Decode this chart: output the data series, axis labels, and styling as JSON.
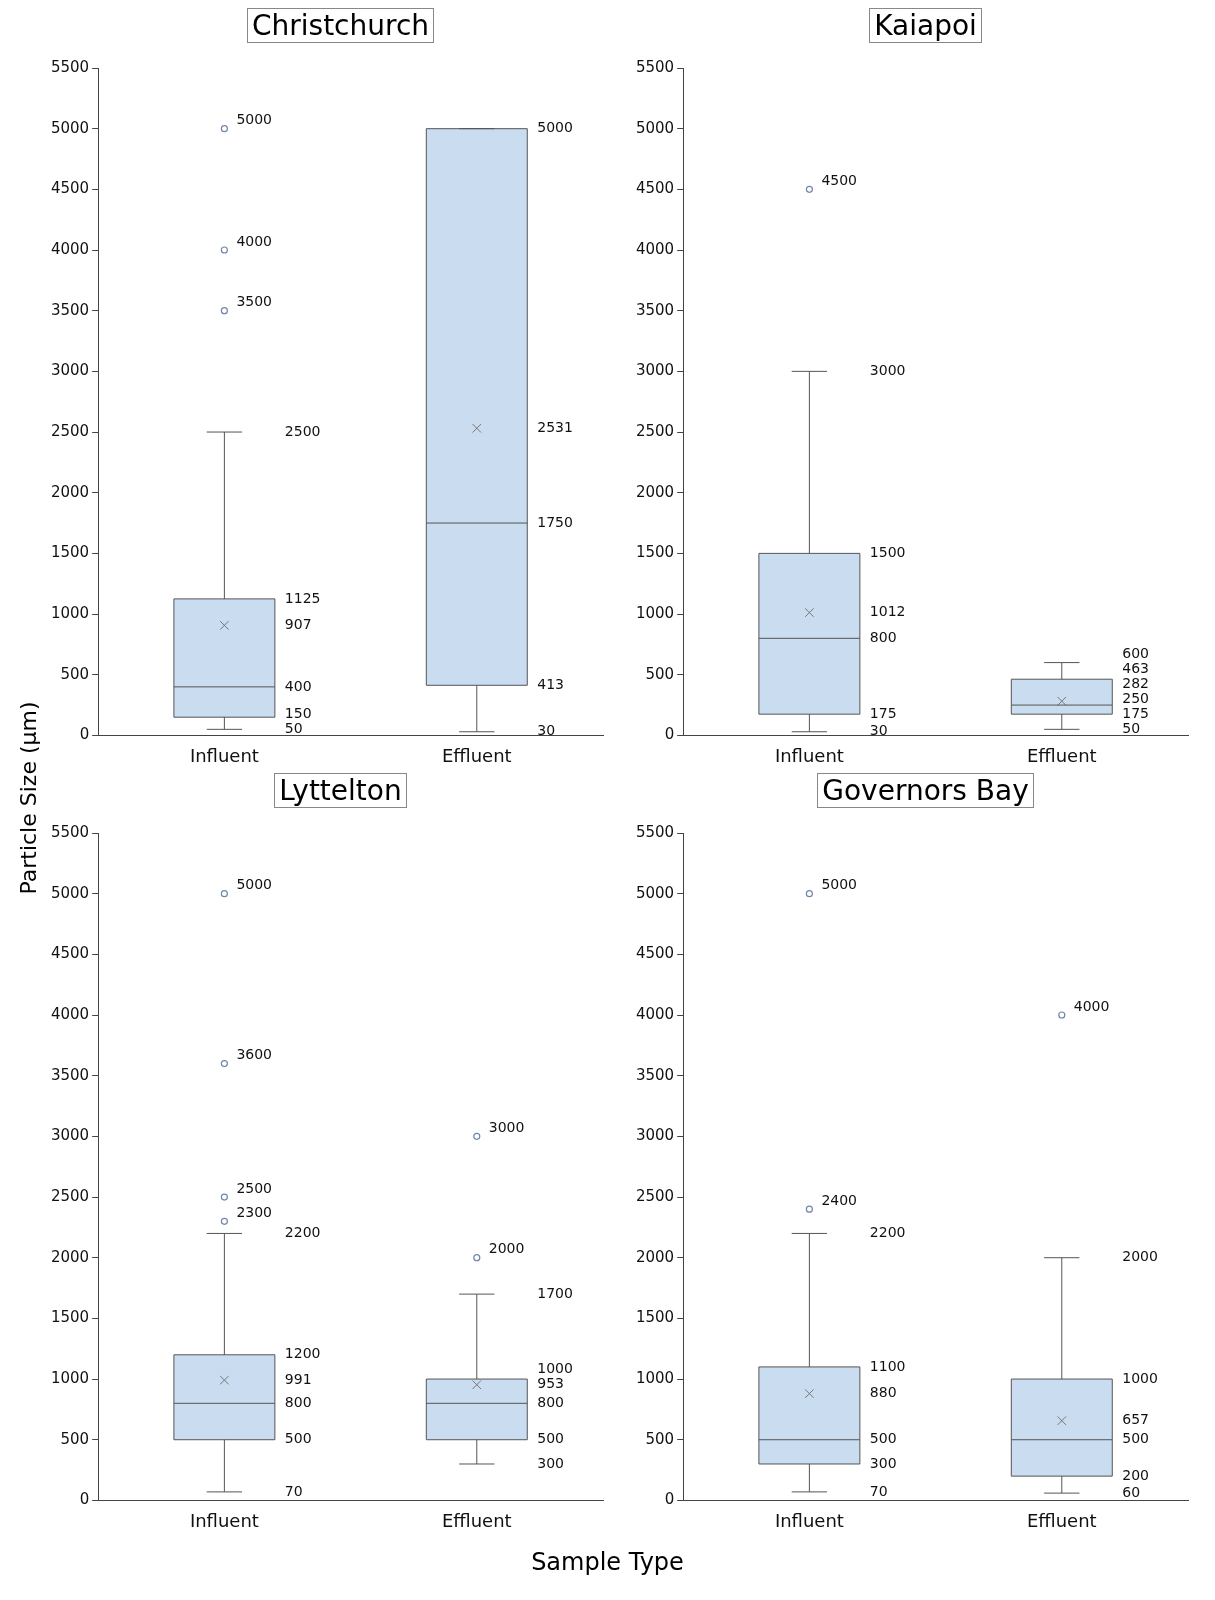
{
  "chart_data": [
    {
      "type": "box",
      "title": "Christchurch",
      "ylabel": "Particle Size (μm)",
      "xlabel": "Sample Type",
      "categories": [
        "Influent",
        "Effluent"
      ],
      "color": "#c9dcf0",
      "marker": "circle",
      "data_labels": true,
      "ylim": [
        0,
        5500
      ],
      "yticks": [
        0,
        500,
        1000,
        1500,
        2000,
        2500,
        3000,
        3500,
        4000,
        4500,
        5000,
        5500
      ],
      "boxes": [
        {
          "low": 50,
          "q1": 150,
          "median": 400,
          "q3": 1125,
          "high": 2500,
          "mean": 907,
          "outliers": [
            3500,
            4000,
            5000
          ]
        },
        {
          "low": 30,
          "q1": 413,
          "median": 1750,
          "q3": 5000,
          "high": 5000,
          "mean": 2531
        }
      ],
      "annotations": [
        "50",
        "150",
        "400",
        "1125",
        "2500",
        "907",
        "3500",
        "4000",
        "5000",
        "30",
        "413",
        "1750",
        "5000",
        "2531"
      ]
    },
    {
      "type": "box",
      "title": "Kaiapoi",
      "categories": [
        "Influent",
        "Effluent"
      ],
      "color": "#c9dcf0",
      "marker": "circle",
      "data_labels": true,
      "ylim": [
        0,
        5500
      ],
      "yticks": [
        0,
        500,
        1000,
        1500,
        2000,
        2500,
        3000,
        3500,
        4000,
        4500,
        5000,
        5500
      ],
      "boxes": [
        {
          "low": 30,
          "q1": 175,
          "median": 800,
          "q3": 1500,
          "high": 3000,
          "mean": 1012,
          "outliers": [
            4500
          ]
        },
        {
          "low": 50,
          "q1": 175,
          "median": 250,
          "q3": 463,
          "high": 600,
          "mean": 282
        }
      ],
      "annotations": [
        "30",
        "175",
        "800",
        "1500",
        "3000",
        "1012",
        "4500",
        "50",
        "175",
        "250",
        "463",
        "600",
        "282"
      ]
    },
    {
      "type": "box",
      "title": "Lyttelton",
      "categories": [
        "Influent",
        "Effluent"
      ],
      "color": "#c9dcf0",
      "marker": "circle",
      "data_labels": true,
      "ylim": [
        0,
        5500
      ],
      "yticks": [
        0,
        500,
        1000,
        1500,
        2000,
        2500,
        3000,
        3500,
        4000,
        4500,
        5000,
        5500
      ],
      "boxes": [
        {
          "low": 70,
          "q1": 500,
          "median": 800,
          "q3": 1200,
          "high": 2200,
          "mean": 991,
          "outliers": [
            2300,
            2500,
            3600,
            5000
          ]
        },
        {
          "low": 300,
          "q1": 500,
          "median": 800,
          "q3": 1000,
          "high": 1700,
          "mean": 953,
          "outliers": [
            2000,
            3000
          ]
        }
      ],
      "annotations": [
        "70",
        "500",
        "800",
        "1200",
        "2200",
        "991",
        "2300",
        "2500",
        "3600",
        "5000",
        "300",
        "500",
        "800",
        "1000",
        "1700",
        "953",
        "2000",
        "3000"
      ]
    },
    {
      "type": "box",
      "title": "Governors Bay",
      "categories": [
        "Influent",
        "Effluent"
      ],
      "color": "#c9dcf0",
      "marker": "circle",
      "data_labels": true,
      "ylim": [
        0,
        5500
      ],
      "yticks": [
        0,
        500,
        1000,
        1500,
        2000,
        2500,
        3000,
        3500,
        4000,
        4500,
        5000,
        5500
      ],
      "boxes": [
        {
          "low": 70,
          "q1": 300,
          "median": 500,
          "q3": 1100,
          "high": 2200,
          "mean": 880,
          "outliers": [
            2400,
            5000
          ]
        },
        {
          "low": 60,
          "q1": 200,
          "median": 500,
          "q3": 1000,
          "high": 2000,
          "mean": 657,
          "outliers": [
            4000
          ]
        }
      ],
      "annotations": [
        "70",
        "300",
        "500",
        "1100",
        "2200",
        "880",
        "2400",
        "5000",
        "60",
        "200",
        "500",
        "1000",
        "2000",
        "657",
        "4000"
      ]
    }
  ]
}
